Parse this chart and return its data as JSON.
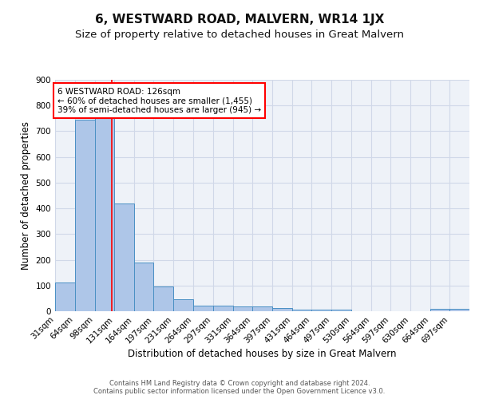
{
  "title": "6, WESTWARD ROAD, MALVERN, WR14 1JX",
  "subtitle": "Size of property relative to detached houses in Great Malvern",
  "xlabel": "Distribution of detached houses by size in Great Malvern",
  "ylabel": "Number of detached properties",
  "bin_labels": [
    "31sqm",
    "64sqm",
    "98sqm",
    "131sqm",
    "164sqm",
    "197sqm",
    "231sqm",
    "264sqm",
    "297sqm",
    "331sqm",
    "364sqm",
    "397sqm",
    "431sqm",
    "464sqm",
    "497sqm",
    "530sqm",
    "564sqm",
    "597sqm",
    "630sqm",
    "664sqm",
    "697sqm"
  ],
  "bin_edges": [
    31,
    64,
    98,
    131,
    164,
    197,
    231,
    264,
    297,
    331,
    364,
    397,
    431,
    464,
    497,
    530,
    564,
    597,
    630,
    664,
    697,
    730
  ],
  "values": [
    113,
    745,
    750,
    420,
    190,
    96,
    47,
    22,
    22,
    18,
    18,
    12,
    5,
    5,
    5,
    0,
    0,
    0,
    0,
    9,
    9
  ],
  "bar_color": "#aec6e8",
  "bar_edge_color": "#4a90c4",
  "grid_color": "#d0d8e8",
  "bg_color": "#eef2f8",
  "red_line_x": 126,
  "annotation_text": "6 WESTWARD ROAD: 126sqm\n← 60% of detached houses are smaller (1,455)\n39% of semi-detached houses are larger (945) →",
  "ylim": [
    0,
    900
  ],
  "yticks": [
    0,
    100,
    200,
    300,
    400,
    500,
    600,
    700,
    800,
    900
  ],
  "title_fontsize": 11,
  "subtitle_fontsize": 9.5,
  "axis_label_fontsize": 8.5,
  "tick_fontsize": 7.5,
  "ann_fontsize": 7.5,
  "footer_line1": "Contains HM Land Registry data © Crown copyright and database right 2024.",
  "footer_line2": "Contains public sector information licensed under the Open Government Licence v3.0."
}
